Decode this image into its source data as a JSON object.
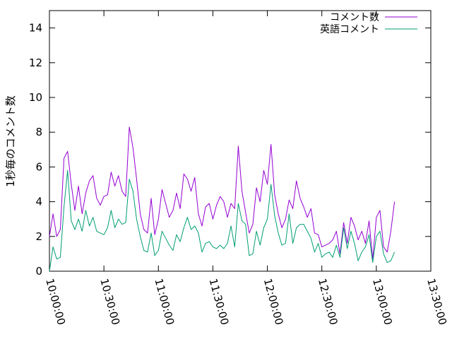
{
  "chart_data": {
    "type": "line",
    "title": "",
    "xlabel": "",
    "ylabel": "1秒毎のコメント数",
    "x_unit": "time",
    "xlim": [
      "10:00:00",
      "13:30:00"
    ],
    "ylim": [
      0,
      15
    ],
    "x_tick_labels": [
      "10:00:00",
      "10:30:00",
      "11:00:00",
      "11:30:00",
      "12:00:00",
      "12:30:00",
      "13:00:00",
      "13:30:00"
    ],
    "y_tick_labels": [
      "0",
      "2",
      "4",
      "6",
      "8",
      "10",
      "12",
      "14"
    ],
    "y_ticks": [
      0,
      2,
      4,
      6,
      8,
      10,
      12,
      14
    ],
    "grid": false,
    "legend_position": "top-right",
    "series": [
      {
        "name": "コメント数",
        "color": "#9400d3",
        "x": [
          "10:00",
          "10:02",
          "10:04",
          "10:06",
          "10:08",
          "10:10",
          "10:12",
          "10:14",
          "10:16",
          "10:18",
          "10:20",
          "10:22",
          "10:24",
          "10:26",
          "10:28",
          "10:30",
          "10:32",
          "10:34",
          "10:36",
          "10:38",
          "10:40",
          "10:42",
          "10:44",
          "10:46",
          "10:48",
          "10:50",
          "10:52",
          "10:54",
          "10:56",
          "10:58",
          "11:00",
          "11:02",
          "11:04",
          "11:06",
          "11:08",
          "11:10",
          "11:12",
          "11:14",
          "11:16",
          "11:18",
          "11:20",
          "11:22",
          "11:24",
          "11:26",
          "11:28",
          "11:30",
          "11:32",
          "11:34",
          "11:36",
          "11:38",
          "11:40",
          "11:42",
          "11:44",
          "11:46",
          "11:48",
          "11:50",
          "11:52",
          "11:54",
          "11:56",
          "11:58",
          "12:00",
          "12:02",
          "12:04",
          "12:06",
          "12:08",
          "12:10",
          "12:12",
          "12:14",
          "12:16",
          "12:18",
          "12:20",
          "12:22",
          "12:24",
          "12:26",
          "12:28",
          "12:30",
          "12:32",
          "12:34",
          "12:36",
          "12:38",
          "12:40",
          "12:42",
          "12:44",
          "12:46",
          "12:48",
          "12:50",
          "12:52",
          "12:54",
          "12:56",
          "12:58",
          "13:00",
          "13:02",
          "13:04",
          "13:06",
          "13:08",
          "13:10"
        ],
        "values": [
          2.0,
          3.3,
          2.0,
          2.4,
          6.5,
          6.9,
          5.0,
          3.5,
          4.9,
          3.3,
          4.5,
          5.2,
          5.5,
          4.2,
          3.8,
          4.3,
          4.4,
          5.7,
          4.9,
          5.5,
          4.6,
          4.3,
          8.3,
          7.1,
          5.3,
          3.3,
          2.4,
          2.2,
          4.2,
          2.1,
          3.0,
          4.7,
          3.9,
          3.1,
          3.5,
          4.5,
          3.6,
          5.6,
          5.3,
          4.6,
          5.4,
          3.3,
          2.6,
          3.7,
          3.9,
          3.0,
          3.8,
          4.3,
          4.0,
          3.1,
          3.9,
          3.6,
          7.2,
          4.6,
          3.4,
          2.2,
          2.7,
          4.8,
          4.0,
          5.8,
          5.0,
          7.3,
          4.4,
          3.3,
          2.5,
          3.0,
          4.1,
          3.6,
          5.2,
          4.2,
          3.7,
          3.1,
          3.6,
          2.2,
          2.1,
          1.4,
          1.5,
          1.6,
          1.8,
          2.3,
          1.0,
          2.8,
          1.6,
          3.1,
          2.6,
          1.8,
          2.3,
          1.6,
          2.9,
          0.7,
          3.1,
          3.5,
          1.4,
          1.1,
          2.3,
          4.0
        ]
      },
      {
        "name": "英語コメント",
        "color": "#009e73",
        "x": [
          "10:00",
          "10:02",
          "10:04",
          "10:06",
          "10:08",
          "10:10",
          "10:12",
          "10:14",
          "10:16",
          "10:18",
          "10:20",
          "10:22",
          "10:24",
          "10:26",
          "10:28",
          "10:30",
          "10:32",
          "10:34",
          "10:36",
          "10:38",
          "10:40",
          "10:42",
          "10:44",
          "10:46",
          "10:48",
          "10:50",
          "10:52",
          "10:54",
          "10:56",
          "10:58",
          "11:00",
          "11:02",
          "11:04",
          "11:06",
          "11:08",
          "11:10",
          "11:12",
          "11:14",
          "11:16",
          "11:18",
          "11:20",
          "11:22",
          "11:24",
          "11:26",
          "11:28",
          "11:30",
          "11:32",
          "11:34",
          "11:36",
          "11:38",
          "11:40",
          "11:42",
          "11:44",
          "11:46",
          "11:48",
          "11:50",
          "11:52",
          "11:54",
          "11:56",
          "11:58",
          "12:00",
          "12:02",
          "12:04",
          "12:06",
          "12:08",
          "12:10",
          "12:12",
          "12:14",
          "12:16",
          "12:18",
          "12:20",
          "12:22",
          "12:24",
          "12:26",
          "12:28",
          "12:30",
          "12:32",
          "12:34",
          "12:36",
          "12:38",
          "12:40",
          "12:42",
          "12:44",
          "12:46",
          "12:48",
          "12:50",
          "12:52",
          "12:54",
          "12:56",
          "12:58",
          "13:00",
          "13:02",
          "13:04",
          "13:06",
          "13:08",
          "13:10"
        ],
        "values": [
          0.0,
          1.4,
          0.7,
          0.8,
          3.7,
          5.8,
          2.9,
          2.4,
          3.0,
          2.3,
          3.5,
          2.6,
          3.1,
          2.3,
          2.2,
          2.1,
          2.5,
          3.5,
          2.5,
          3.0,
          2.7,
          2.8,
          5.3,
          4.6,
          3.0,
          2.0,
          1.2,
          1.1,
          2.2,
          0.9,
          1.2,
          2.3,
          1.9,
          1.5,
          1.2,
          2.1,
          1.7,
          2.5,
          3.1,
          2.4,
          2.6,
          2.2,
          1.1,
          1.6,
          1.7,
          1.4,
          1.3,
          1.5,
          1.3,
          1.6,
          2.6,
          1.4,
          3.9,
          2.9,
          2.7,
          0.9,
          1.0,
          2.3,
          1.5,
          2.5,
          3.0,
          5.0,
          3.2,
          2.2,
          1.5,
          1.6,
          3.3,
          1.6,
          2.5,
          2.7,
          2.7,
          2.3,
          1.9,
          1.1,
          1.6,
          0.8,
          1.0,
          1.1,
          0.8,
          1.5,
          0.8,
          2.5,
          1.3,
          2.3,
          1.6,
          0.6,
          1.1,
          1.4,
          2.1,
          0.5,
          2.0,
          2.3,
          1.0,
          0.5,
          0.6,
          1.1
        ]
      }
    ]
  }
}
